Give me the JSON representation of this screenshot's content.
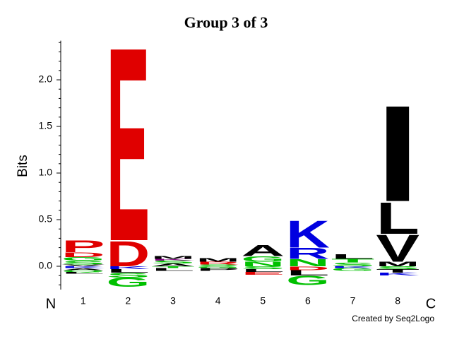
{
  "chart_data": {
    "type": "logo",
    "title": "Group 3 of 3",
    "y_label": "Bits",
    "start_label": "N",
    "end_label": "C",
    "credit": "Created by Seq2Logo",
    "categories": [
      "1",
      "2",
      "3",
      "4",
      "5",
      "6",
      "7",
      "8"
    ],
    "ylim": [
      -0.25,
      2.42
    ],
    "yticks": [
      {
        "value": 0,
        "label": "0.0"
      },
      {
        "value": 0.5,
        "label": "0.5"
      },
      {
        "value": 1,
        "label": "1.0"
      },
      {
        "value": 1.5,
        "label": "1.5"
      },
      {
        "value": 2,
        "label": "2.0"
      }
    ],
    "minor_yticks": [
      -0.2,
      -0.1,
      0.1,
      0.2,
      0.3,
      0.4,
      0.6,
      0.7,
      0.8,
      0.9,
      1.1,
      1.2,
      1.3,
      1.4,
      1.6,
      1.7,
      1.8,
      1.9,
      2.1,
      2.2,
      2.3,
      2.4
    ],
    "stacks": [
      [
        {
          "letter": "V",
          "color": "#000000",
          "value": 0.02
        },
        {
          "letter": "S",
          "color": "#00c000",
          "value": 0.04
        },
        {
          "letter": "G",
          "color": "#00c000",
          "value": 0.04
        },
        {
          "letter": "D",
          "color": "#e00000",
          "value": 0.05
        },
        {
          "letter": "P",
          "color": "#e00000",
          "value": 0.13
        },
        {
          "letter": "K",
          "color": "#0000e0",
          "value": -0.02
        },
        {
          "letter": "A",
          "color": "#000000",
          "value": -0.02
        },
        {
          "letter": "Q",
          "color": "#00c000",
          "value": -0.02
        },
        {
          "letter": "L",
          "color": "#000000",
          "value": -0.02
        }
      ],
      [
        {
          "letter": "D",
          "color": "#e00000",
          "value": 0.28
        },
        {
          "letter": "E",
          "color": "#e00000",
          "value": 2.14
        },
        {
          "letter": "K",
          "color": "#0000e0",
          "value": -0.03
        },
        {
          "letter": "L",
          "color": "#000000",
          "value": -0.04
        },
        {
          "letter": "S",
          "color": "#00c000",
          "value": -0.05
        },
        {
          "letter": "G",
          "color": "#00c000",
          "value": -0.1
        }
      ],
      [
        {
          "letter": "A",
          "color": "#000000",
          "value": 0.03
        },
        {
          "letter": "S",
          "color": "#00c000",
          "value": 0.03
        },
        {
          "letter": "K",
          "color": "#800080",
          "value": 0.02
        },
        {
          "letter": "M",
          "color": "#000000",
          "value": 0.03
        },
        {
          "letter": "T",
          "color": "#00c000",
          "value": -0.02
        },
        {
          "letter": "L",
          "color": "#000000",
          "value": -0.03
        }
      ],
      [
        {
          "letter": "S",
          "color": "#00c000",
          "value": 0.02
        },
        {
          "letter": "R",
          "color": "#e00000",
          "value": 0.03
        },
        {
          "letter": "M",
          "color": "#000000",
          "value": 0.04
        },
        {
          "letter": "G",
          "color": "#00c000",
          "value": -0.02
        },
        {
          "letter": "P",
          "color": "#000000",
          "value": -0.03
        }
      ],
      [
        {
          "letter": "N",
          "color": "#00c000",
          "value": 0.05
        },
        {
          "letter": "G",
          "color": "#00c000",
          "value": 0.06
        },
        {
          "letter": "A",
          "color": "#000000",
          "value": 0.12
        },
        {
          "letter": "S",
          "color": "#00c000",
          "value": -0.03
        },
        {
          "letter": "L",
          "color": "#000000",
          "value": -0.03
        },
        {
          "letter": "E",
          "color": "#e00000",
          "value": -0.03
        }
      ],
      [
        {
          "letter": "N",
          "color": "#00c000",
          "value": 0.08
        },
        {
          "letter": "R",
          "color": "#0000e0",
          "value": 0.12
        },
        {
          "letter": "K",
          "color": "#0000e0",
          "value": 0.3
        },
        {
          "letter": "D",
          "color": "#e00000",
          "value": -0.04
        },
        {
          "letter": "L",
          "color": "#000000",
          "value": -0.06
        },
        {
          "letter": "G",
          "color": "#00c000",
          "value": -0.1
        }
      ],
      [
        {
          "letter": "S",
          "color": "#00c000",
          "value": 0.04
        },
        {
          "letter": "T",
          "color": "#00c000",
          "value": 0.04
        },
        {
          "letter": "L",
          "color": "#000000",
          "value": 0.05
        },
        {
          "letter": "K",
          "color": "#0000e0",
          "value": -0.02
        },
        {
          "letter": "G",
          "color": "#00c000",
          "value": -0.03
        }
      ],
      [
        {
          "letter": "M",
          "color": "#000000",
          "value": 0.05
        },
        {
          "letter": "V",
          "color": "#000000",
          "value": 0.3
        },
        {
          "letter": "L",
          "color": "#000000",
          "value": 0.35
        },
        {
          "letter": "I",
          "color": "#000000",
          "value": 1.06
        },
        {
          "letter": "S",
          "color": "#00c000",
          "value": -0.03
        },
        {
          "letter": "T",
          "color": "#000000",
          "value": -0.04
        },
        {
          "letter": "K",
          "color": "#0000e0",
          "value": -0.03
        }
      ]
    ]
  }
}
